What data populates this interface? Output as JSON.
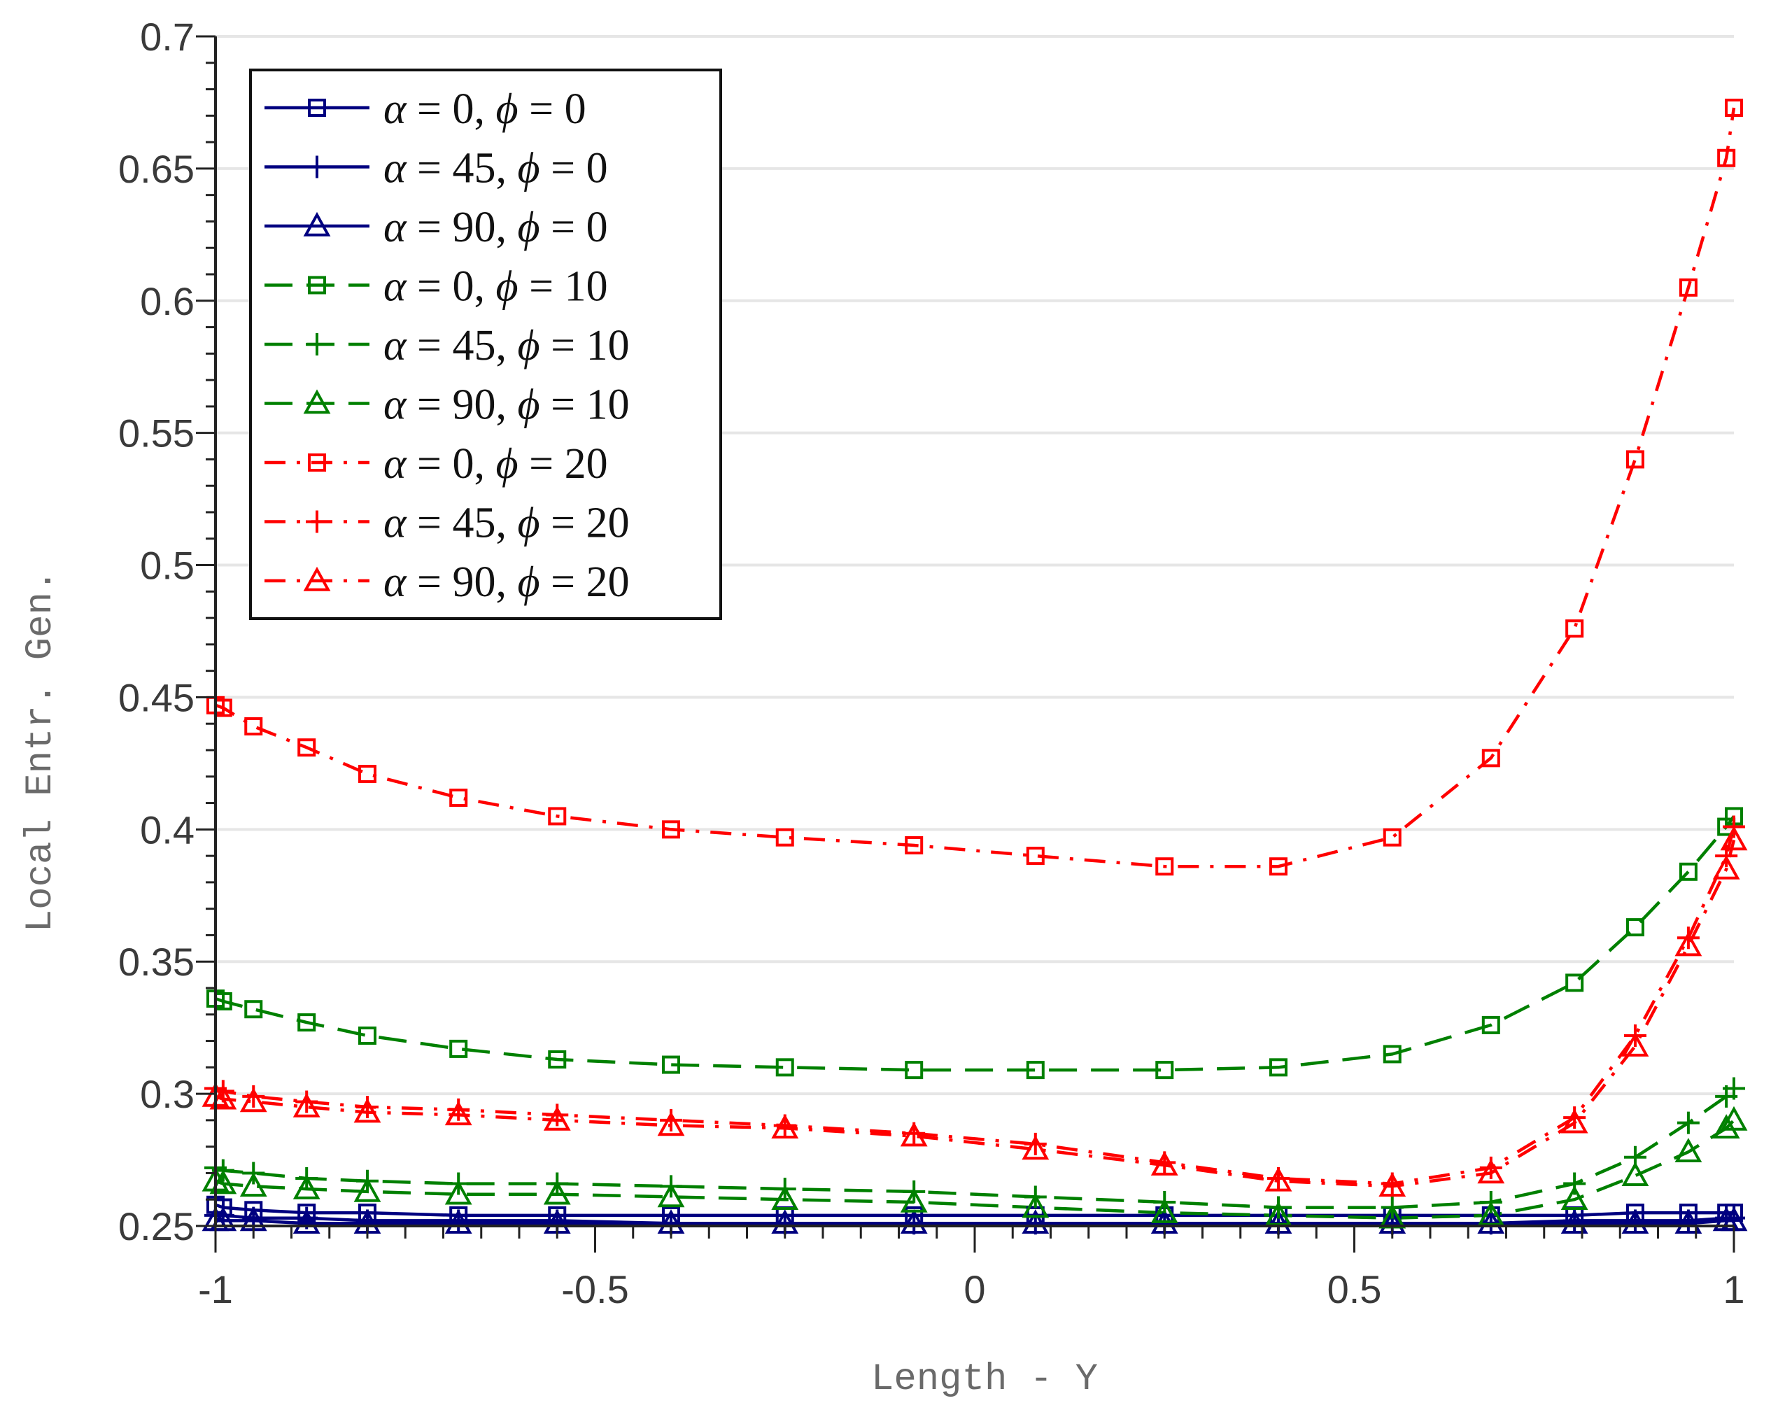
{
  "chart_data": {
    "type": "line",
    "title": "",
    "xlabel": "Length - Y",
    "ylabel": "Local Entr. Gen.",
    "xlim": [
      -1,
      1
    ],
    "ylim": [
      0.25,
      0.7
    ],
    "grid": "horizontal",
    "legend_position": "top-left",
    "xticks": [
      -1,
      -0.5,
      0,
      0.5,
      1
    ],
    "xtick_labels": [
      "-1",
      "-0.5",
      "0",
      "0.5",
      "1"
    ],
    "yticks": [
      0.25,
      0.3,
      0.35,
      0.4,
      0.45,
      0.5,
      0.55,
      0.6,
      0.65,
      0.7
    ],
    "ytick_labels": [
      "0.25",
      "0.3",
      "0.35",
      "0.4",
      "0.45",
      "0.5",
      "0.55",
      "0.6",
      "0.65",
      "0.7"
    ],
    "x": [
      -1,
      -0.99,
      -0.95,
      -0.88,
      -0.8,
      -0.68,
      -0.55,
      -0.4,
      -0.25,
      -0.08,
      0.08,
      0.25,
      0.4,
      0.55,
      0.68,
      0.79,
      0.87,
      0.94,
      0.99,
      1.0
    ],
    "series": [
      {
        "name": "α = 0,  ϕ  = 0",
        "alpha": "0",
        "phi": "0",
        "color": "#000080",
        "dash": "solid",
        "marker": "square",
        "values": [
          0.258,
          0.257,
          0.256,
          0.255,
          0.255,
          0.254,
          0.254,
          0.254,
          0.254,
          0.254,
          0.254,
          0.254,
          0.254,
          0.254,
          0.254,
          0.254,
          0.255,
          0.255,
          0.255,
          0.255
        ]
      },
      {
        "name": "α = 45, ϕ  = 0",
        "alpha": "45",
        "phi": "0",
        "color": "#000080",
        "dash": "solid",
        "marker": "plus",
        "values": [
          0.254,
          0.254,
          0.253,
          0.253,
          0.252,
          0.252,
          0.252,
          0.251,
          0.251,
          0.251,
          0.251,
          0.251,
          0.251,
          0.251,
          0.251,
          0.252,
          0.252,
          0.252,
          0.253,
          0.253
        ]
      },
      {
        "name": "α = 90, ϕ  = 0",
        "alpha": "90",
        "phi": "0",
        "color": "#000080",
        "dash": "solid",
        "marker": "triangle",
        "values": [
          0.252,
          0.252,
          0.252,
          0.251,
          0.251,
          0.251,
          0.251,
          0.251,
          0.251,
          0.251,
          0.251,
          0.251,
          0.251,
          0.251,
          0.251,
          0.251,
          0.251,
          0.251,
          0.252,
          0.252
        ]
      },
      {
        "name": "α = 0,  ϕ  = 10",
        "alpha": "0",
        "phi": "10",
        "color": "#008000",
        "dash": "dashed",
        "marker": "square",
        "values": [
          0.336,
          0.335,
          0.332,
          0.327,
          0.322,
          0.317,
          0.313,
          0.311,
          0.31,
          0.309,
          0.309,
          0.309,
          0.31,
          0.315,
          0.326,
          0.342,
          0.363,
          0.384,
          0.401,
          0.405
        ]
      },
      {
        "name": "α = 45, ϕ  = 10",
        "alpha": "45",
        "phi": "10",
        "color": "#008000",
        "dash": "dashed",
        "marker": "plus",
        "values": [
          0.272,
          0.271,
          0.27,
          0.268,
          0.267,
          0.266,
          0.266,
          0.265,
          0.264,
          0.263,
          0.261,
          0.259,
          0.257,
          0.257,
          0.259,
          0.266,
          0.276,
          0.289,
          0.299,
          0.302
        ]
      },
      {
        "name": "α = 90, ϕ  = 10",
        "alpha": "90",
        "phi": "10",
        "color": "#008000",
        "dash": "dashed",
        "marker": "triangle",
        "values": [
          0.267,
          0.266,
          0.265,
          0.264,
          0.263,
          0.262,
          0.262,
          0.261,
          0.26,
          0.259,
          0.257,
          0.255,
          0.254,
          0.253,
          0.254,
          0.26,
          0.269,
          0.278,
          0.287,
          0.29
        ]
      },
      {
        "name": "α = 0,  ϕ  = 20",
        "alpha": "0",
        "phi": "20",
        "color": "#ff0000",
        "dash": "dashdot",
        "marker": "square",
        "values": [
          0.447,
          0.446,
          0.439,
          0.431,
          0.421,
          0.412,
          0.405,
          0.4,
          0.397,
          0.394,
          0.39,
          0.386,
          0.386,
          0.397,
          0.427,
          0.476,
          0.54,
          0.605,
          0.654,
          0.673
        ]
      },
      {
        "name": "α = 45, ϕ  = 20",
        "alpha": "45",
        "phi": "20",
        "color": "#ff0000",
        "dash": "dashdot",
        "marker": "plus",
        "values": [
          0.302,
          0.301,
          0.299,
          0.297,
          0.295,
          0.294,
          0.292,
          0.29,
          0.288,
          0.285,
          0.281,
          0.274,
          0.268,
          0.266,
          0.272,
          0.291,
          0.322,
          0.359,
          0.39,
          0.401
        ]
      },
      {
        "name": "α = 90, ϕ  = 20",
        "alpha": "90",
        "phi": "20",
        "color": "#ff0000",
        "dash": "dashdot",
        "marker": "triangle",
        "values": [
          0.299,
          0.298,
          0.297,
          0.295,
          0.293,
          0.292,
          0.29,
          0.288,
          0.287,
          0.284,
          0.279,
          0.273,
          0.267,
          0.265,
          0.27,
          0.289,
          0.318,
          0.356,
          0.385,
          0.396
        ]
      }
    ]
  }
}
